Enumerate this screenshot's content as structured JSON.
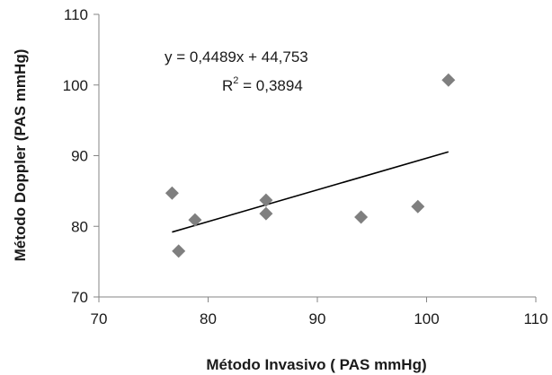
{
  "chart_data": {
    "type": "scatter",
    "xlabel": "Método Invasivo ( PAS mmHg)",
    "ylabel": "Método Doppler (PAS mmHg)",
    "xlim": [
      70,
      110
    ],
    "ylim": [
      70,
      110
    ],
    "x_ticks": [
      "70",
      "80",
      "90",
      "100",
      "110"
    ],
    "y_ticks": [
      "70",
      "80",
      "90",
      "100",
      "110"
    ],
    "grid": false,
    "marker": "diamond",
    "marker_color": "#7f7f7f",
    "series": [
      {
        "points": [
          {
            "x": 76.7,
            "y": 84.7
          },
          {
            "x": 77.3,
            "y": 76.5
          },
          {
            "x": 78.8,
            "y": 80.9
          },
          {
            "x": 85.3,
            "y": 83.7
          },
          {
            "x": 85.3,
            "y": 81.8
          },
          {
            "x": 94.0,
            "y": 81.3
          },
          {
            "x": 99.2,
            "y": 82.8
          },
          {
            "x": 102.0,
            "y": 100.7
          }
        ]
      }
    ],
    "trendline": {
      "type": "linear",
      "slope": 0.4489,
      "intercept": 44.753,
      "x_range": [
        76.7,
        102.0
      ],
      "color": "#000000"
    },
    "annotations": {
      "equation": "y = 0,4489x + 44,753",
      "r2_label": "R",
      "r2_sup": "2",
      "r2_value": " = 0,3894"
    }
  }
}
